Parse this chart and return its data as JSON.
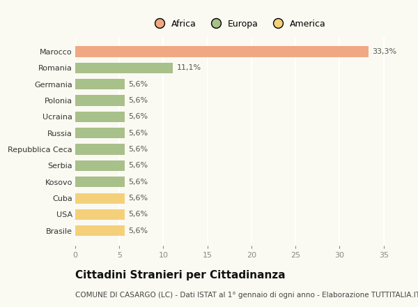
{
  "countries": [
    "Marocco",
    "Romania",
    "Germania",
    "Polonia",
    "Ucraina",
    "Russia",
    "Repubblica Ceca",
    "Serbia",
    "Kosovo",
    "Cuba",
    "USA",
    "Brasile"
  ],
  "values": [
    33.3,
    11.1,
    5.6,
    5.6,
    5.6,
    5.6,
    5.6,
    5.6,
    5.6,
    5.6,
    5.6,
    5.6
  ],
  "labels": [
    "33,3%",
    "11,1%",
    "5,6%",
    "5,6%",
    "5,6%",
    "5,6%",
    "5,6%",
    "5,6%",
    "5,6%",
    "5,6%",
    "5,6%",
    "5,6%"
  ],
  "colors": [
    "#F0A882",
    "#A8C08A",
    "#A8C08A",
    "#A8C08A",
    "#A8C08A",
    "#A8C08A",
    "#A8C08A",
    "#A8C08A",
    "#A8C08A",
    "#F5D07A",
    "#F5D07A",
    "#F5D07A"
  ],
  "legend_labels": [
    "Africa",
    "Europa",
    "America"
  ],
  "legend_colors": [
    "#F0A882",
    "#A8C08A",
    "#F5D07A"
  ],
  "xlim": [
    0,
    37
  ],
  "xticks": [
    0,
    5,
    10,
    15,
    20,
    25,
    30,
    35
  ],
  "title": "Cittadini Stranieri per Cittadinanza",
  "subtitle": "COMUNE DI CASARGO (LC) - Dati ISTAT al 1° gennaio di ogni anno - Elaborazione TUTTITALIA.IT",
  "title_fontsize": 11,
  "subtitle_fontsize": 7.5,
  "label_fontsize": 8,
  "ytick_fontsize": 8,
  "xtick_fontsize": 8,
  "background_color": "#FAFAF2",
  "grid_color": "#FFFFFF",
  "bar_height": 0.65
}
